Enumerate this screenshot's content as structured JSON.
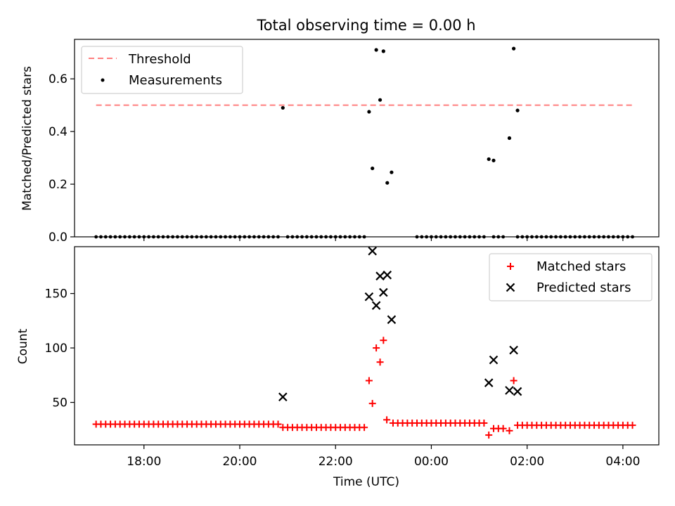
{
  "title": "Total observing time = 0.00 h",
  "colors": {
    "threshold": "#ff7f7f",
    "measurements": "#000000",
    "matched": "#ff0000",
    "predicted": "#000000"
  },
  "chart_data": [
    {
      "type": "scatter",
      "ylabel": "Matched/Predicted stars",
      "ylim": [
        0,
        0.75
      ],
      "yticks": [
        0.0,
        0.2,
        0.4,
        0.6
      ],
      "ytick_labels": [
        "0.0",
        "0.2",
        "0.4",
        "0.6"
      ],
      "legend": {
        "position": "top-left",
        "entries": [
          "Threshold",
          "Measurements"
        ]
      },
      "threshold": {
        "name": "Threshold",
        "y": 0.5,
        "x_start": 17.0,
        "x_end": 28.2
      },
      "measurements": {
        "name": "Measurements",
        "zero_runs": [
          [
            17.0,
            20.8
          ],
          [
            21.0,
            22.6
          ],
          [
            23.7,
            25.1
          ],
          [
            25.3,
            25.5
          ],
          [
            25.8,
            28.2
          ]
        ],
        "zero_step": 0.1,
        "points": [
          [
            20.9,
            0.49
          ],
          [
            22.7,
            0.475
          ],
          [
            22.77,
            0.26
          ],
          [
            22.85,
            0.71
          ],
          [
            22.93,
            0.52
          ],
          [
            23.0,
            0.705
          ],
          [
            23.08,
            0.205
          ],
          [
            23.17,
            0.245
          ],
          [
            25.2,
            0.295
          ],
          [
            25.3,
            0.29
          ],
          [
            25.63,
            0.375
          ],
          [
            25.72,
            0.715
          ],
          [
            25.8,
            0.48
          ]
        ]
      }
    },
    {
      "type": "scatter",
      "ylabel": "Count",
      "xlabel": "Time (UTC)",
      "ylim": [
        11,
        193
      ],
      "yticks": [
        50,
        100,
        150
      ],
      "ytick_labels": [
        "50",
        "100",
        "150"
      ],
      "xlim": [
        16.55,
        28.75
      ],
      "xticks": [
        18,
        20,
        22,
        24,
        26,
        28
      ],
      "xtick_labels": [
        "18:00",
        "20:00",
        "22:00",
        "00:00",
        "02:00",
        "04:00"
      ],
      "legend": {
        "position": "top-right",
        "entries": [
          "Matched stars",
          "Predicted stars"
        ]
      },
      "matched": {
        "name": "Matched stars",
        "runs": [
          [
            17.0,
            20.8,
            30
          ],
          [
            20.9,
            22.6,
            27
          ],
          [
            23.2,
            25.1,
            31
          ],
          [
            25.8,
            28.2,
            29
          ]
        ],
        "run_step": 0.1,
        "points": [
          [
            23.07,
            34
          ],
          [
            22.7,
            70
          ],
          [
            22.77,
            49
          ],
          [
            22.85,
            100
          ],
          [
            22.93,
            87
          ],
          [
            23.0,
            107
          ],
          [
            25.2,
            20
          ],
          [
            25.3,
            26
          ],
          [
            25.4,
            26
          ],
          [
            25.5,
            26
          ],
          [
            25.63,
            24
          ],
          [
            25.72,
            70
          ]
        ]
      },
      "predicted": {
        "name": "Predicted stars",
        "points": [
          [
            20.9,
            55
          ],
          [
            22.7,
            147
          ],
          [
            22.77,
            189
          ],
          [
            22.85,
            139
          ],
          [
            22.93,
            166
          ],
          [
            23.0,
            151
          ],
          [
            23.08,
            167
          ],
          [
            23.17,
            126
          ],
          [
            25.2,
            68
          ],
          [
            25.3,
            89
          ],
          [
            25.63,
            61
          ],
          [
            25.72,
            98
          ],
          [
            25.8,
            60
          ]
        ]
      }
    }
  ]
}
